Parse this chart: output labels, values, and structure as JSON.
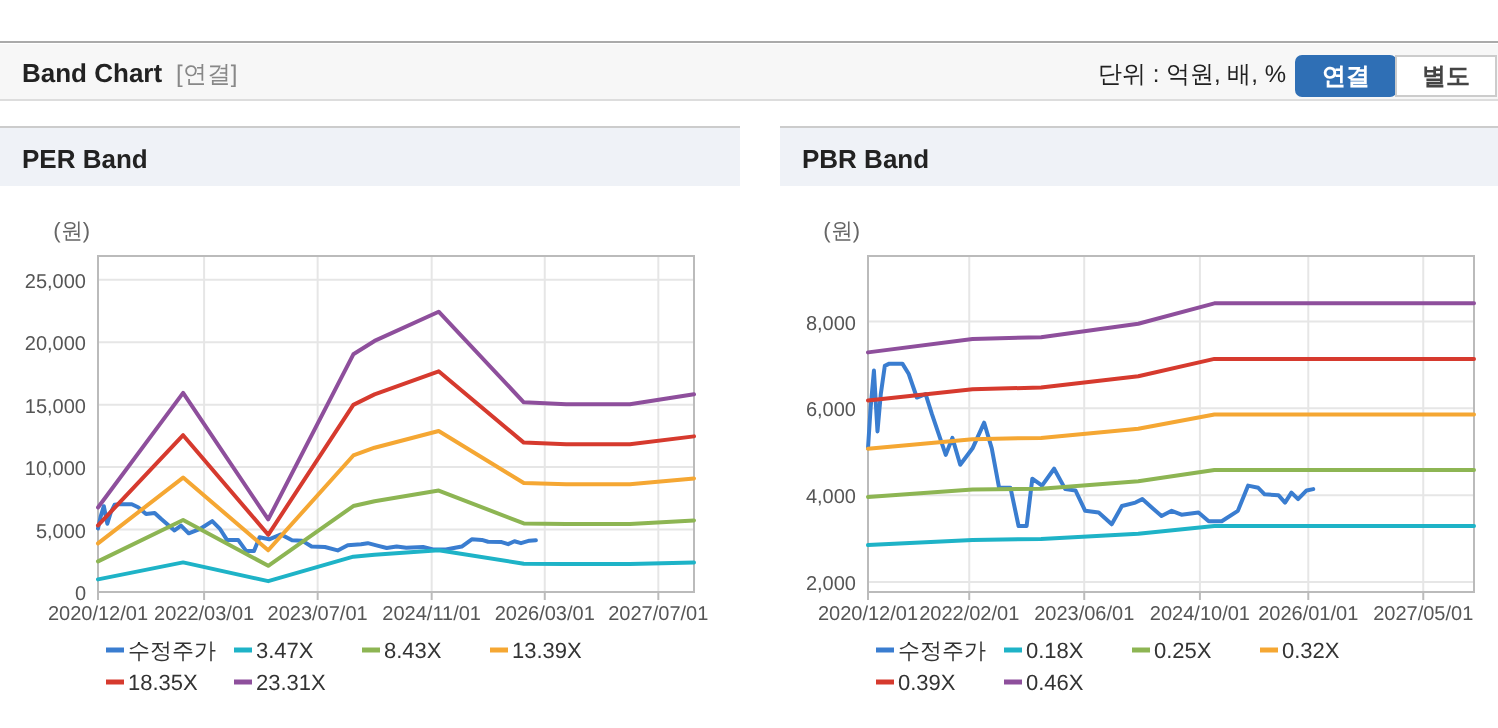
{
  "chart_data": [
    {
      "type": "other",
      "title": "Band Chart",
      "annotations": [
        "[연결]",
        "단위 : 억원, 배, %",
        "연결",
        "별도"
      ]
    },
    {
      "type": "line",
      "title": "PER Band",
      "ylabel": "(원)",
      "xlim": [
        "2020-12-01",
        "2027-12-01"
      ],
      "ylim": [
        0,
        26900
      ],
      "xticks": [
        {
          "value": "2020-12-01",
          "label": "2020/12/01"
        },
        {
          "value": "2022-03-01",
          "label": "2022/03/01"
        },
        {
          "value": "2023-07-01",
          "label": "2023/07/01"
        },
        {
          "value": "2024-11-01",
          "label": "2024/11/01"
        },
        {
          "value": "2026-03-01",
          "label": "2026/03/01"
        },
        {
          "value": "2027-07-01",
          "label": "2027/07/01"
        }
      ],
      "yticks": [
        0,
        {
          "value": 5000,
          "label": "5,000"
        },
        {
          "value": 10000,
          "label": "10,000"
        },
        {
          "value": 15000,
          "label": "15,000"
        },
        {
          "value": 20000,
          "label": "20,000"
        },
        {
          "value": 25000,
          "label": "25,000"
        }
      ],
      "grid": true,
      "legend": "bottom",
      "marker": "none",
      "line_style": "solid",
      "series": [
        {
          "name": "수정주가",
          "color": "#3a7dd0",
          "x": [
            "2020-12-01",
            "2020-12-12",
            "2020-12-26",
            "2021-01-10",
            "2021-01-24",
            "2021-02-10",
            "2021-03-01",
            "2021-04-25",
            "2021-05-22",
            "2021-06-25",
            "2021-08-01",
            "2021-08-28",
            "2021-10-25",
            "2021-11-22",
            "2021-12-25",
            "2022-02-15",
            "2022-04-05",
            "2022-05-07",
            "2022-06-07",
            "2022-07-25",
            "2022-08-28",
            "2022-10-01",
            "2022-10-25",
            "2022-12-05",
            "2023-01-25",
            "2023-03-13",
            "2023-04-25",
            "2023-06-05",
            "2023-08-01",
            "2023-09-25",
            "2023-11-07",
            "2024-01-03",
            "2024-02-01",
            "2024-03-13",
            "2024-04-22",
            "2024-06-04",
            "2024-07-15",
            "2024-09-25",
            "2024-11-07",
            "2025-01-01",
            "2025-03-10",
            "2025-04-22",
            "2025-06-04",
            "2025-07-01",
            "2025-08-28",
            "2025-09-25",
            "2025-10-22",
            "2025-11-19",
            "2025-12-25",
            "2026-01-22"
          ],
          "values": [
            5080,
            6010,
            6870,
            5470,
            6330,
            6980,
            7030,
            7030,
            6790,
            6250,
            6330,
            5860,
            4930,
            5320,
            4700,
            5080,
            5670,
            5080,
            4170,
            4170,
            3290,
            3290,
            4380,
            4220,
            4610,
            4140,
            4110,
            3640,
            3600,
            3330,
            3750,
            3830,
            3910,
            3710,
            3520,
            3640,
            3550,
            3600,
            3400,
            3400,
            3640,
            4220,
            4170,
            4020,
            4000,
            3830,
            4060,
            3910,
            4110,
            4140
          ]
        },
        {
          "name": "3.47X",
          "color": "#1eb3c7",
          "x": [
            "2020-12-01",
            "2021-12-01",
            "2022-12-01",
            "2023-12-01",
            "2024-03-01",
            "2024-12-01",
            "2025-12-01",
            "2026-06-01",
            "2027-03-01",
            "2027-12-01"
          ],
          "values": [
            1010,
            2370,
            870,
            2830,
            2990,
            3340,
            2260,
            2240,
            2240,
            2360
          ]
        },
        {
          "name": "8.43X",
          "color": "#8db553",
          "x": [
            "2020-12-01",
            "2021-12-01",
            "2022-12-01",
            "2023-12-01",
            "2024-03-01",
            "2024-12-01",
            "2025-12-01",
            "2026-06-01",
            "2027-03-01",
            "2027-12-01"
          ],
          "values": [
            2450,
            5760,
            2100,
            6880,
            7270,
            8120,
            5490,
            5440,
            5440,
            5730
          ]
        },
        {
          "name": "13.39X",
          "color": "#f5a733",
          "x": [
            "2020-12-01",
            "2021-12-01",
            "2022-12-01",
            "2023-12-01",
            "2024-03-01",
            "2024-12-01",
            "2025-12-01",
            "2026-06-01",
            "2027-03-01",
            "2027-12-01"
          ],
          "values": [
            3890,
            9160,
            3340,
            10930,
            11550,
            12890,
            8730,
            8630,
            8630,
            9090
          ]
        },
        {
          "name": "18.35X",
          "color": "#d63a2e",
          "x": [
            "2020-12-01",
            "2021-12-01",
            "2022-12-01",
            "2023-12-01",
            "2024-03-01",
            "2024-12-01",
            "2025-12-01",
            "2026-06-01",
            "2027-03-01",
            "2027-12-01"
          ],
          "values": [
            5330,
            12550,
            4580,
            14980,
            15820,
            17670,
            11960,
            11830,
            11830,
            12460
          ]
        },
        {
          "name": "23.31X",
          "color": "#8e4f9c",
          "x": [
            "2020-12-01",
            "2021-12-01",
            "2022-12-01",
            "2023-12-01",
            "2024-03-01",
            "2024-12-01",
            "2025-12-01",
            "2026-06-01",
            "2027-03-01",
            "2027-12-01"
          ],
          "values": [
            6770,
            15940,
            5810,
            19030,
            20100,
            22440,
            15190,
            15030,
            15030,
            15830
          ]
        }
      ]
    },
    {
      "type": "line",
      "title": "PBR Band",
      "ylabel": "(원)",
      "xlim": [
        "2020-12-01",
        "2027-12-01"
      ],
      "ylim": [
        1770,
        9510
      ],
      "xticks": [
        {
          "value": "2020-12-01",
          "label": "2020/12/01"
        },
        {
          "value": "2022-02-01",
          "label": "2022/02/01"
        },
        {
          "value": "2023-06-01",
          "label": "2023/06/01"
        },
        {
          "value": "2024-10-01",
          "label": "2024/10/01"
        },
        {
          "value": "2026-01-01",
          "label": "2026/01/01"
        },
        {
          "value": "2027-05-01",
          "label": "2027/05/01"
        }
      ],
      "yticks": [
        {
          "value": 2000,
          "label": "2,000"
        },
        {
          "value": 4000,
          "label": "4,000"
        },
        {
          "value": 6000,
          "label": "6,000"
        },
        {
          "value": 8000,
          "label": "8,000"
        }
      ],
      "grid": true,
      "legend": "bottom",
      "marker": "none",
      "line_style": "solid",
      "series": [
        {
          "name": "수정주가",
          "color": "#3a7dd0",
          "x": [
            "2020-12-01",
            "2020-12-12",
            "2020-12-26",
            "2021-01-10",
            "2021-01-24",
            "2021-02-10",
            "2021-03-01",
            "2021-04-25",
            "2021-05-22",
            "2021-06-25",
            "2021-08-01",
            "2021-08-28",
            "2021-10-25",
            "2021-11-22",
            "2021-12-25",
            "2022-02-15",
            "2022-04-05",
            "2022-05-07",
            "2022-06-07",
            "2022-07-25",
            "2022-08-28",
            "2022-10-01",
            "2022-10-25",
            "2022-12-05",
            "2023-01-25",
            "2023-03-13",
            "2023-04-25",
            "2023-06-05",
            "2023-08-01",
            "2023-09-25",
            "2023-11-07",
            "2024-01-03",
            "2024-02-01",
            "2024-03-13",
            "2024-04-22",
            "2024-06-04",
            "2024-07-15",
            "2024-09-25",
            "2024-11-07",
            "2025-01-01",
            "2025-03-10",
            "2025-04-22",
            "2025-06-04",
            "2025-07-01",
            "2025-08-28",
            "2025-09-25",
            "2025-10-22",
            "2025-11-19",
            "2025-12-25",
            "2026-01-22"
          ],
          "values": [
            5080,
            6010,
            6870,
            5470,
            6330,
            6980,
            7030,
            7030,
            6790,
            6250,
            6330,
            5860,
            4930,
            5320,
            4700,
            5080,
            5670,
            5080,
            4170,
            4170,
            3290,
            3290,
            4380,
            4220,
            4610,
            4140,
            4110,
            3640,
            3600,
            3330,
            3750,
            3830,
            3910,
            3710,
            3520,
            3640,
            3550,
            3600,
            3400,
            3400,
            3640,
            4220,
            4170,
            4020,
            4000,
            3830,
            4060,
            3910,
            4110,
            4140
          ]
        },
        {
          "name": "0.18X",
          "color": "#1eb3c7",
          "x": [
            "2020-12-01",
            "2022-02-15",
            "2022-12-01",
            "2024-01-15",
            "2024-12-01",
            "2027-12-01"
          ],
          "values": [
            2850,
            2970,
            2990,
            3110,
            3290,
            3290
          ]
        },
        {
          "name": "0.25X",
          "color": "#8db553",
          "x": [
            "2020-12-01",
            "2022-02-15",
            "2022-12-01",
            "2024-01-15",
            "2024-12-01",
            "2027-12-01"
          ],
          "values": [
            3960,
            4130,
            4150,
            4320,
            4580,
            4580
          ]
        },
        {
          "name": "0.32X",
          "color": "#f5a733",
          "x": [
            "2020-12-01",
            "2022-02-15",
            "2022-12-01",
            "2024-01-15",
            "2024-12-01",
            "2027-12-01"
          ],
          "values": [
            5070,
            5290,
            5320,
            5530,
            5860,
            5860
          ]
        },
        {
          "name": "0.39X",
          "color": "#d63a2e",
          "x": [
            "2020-12-01",
            "2022-02-15",
            "2022-12-01",
            "2024-01-15",
            "2024-12-01",
            "2027-12-01"
          ],
          "values": [
            6180,
            6440,
            6480,
            6740,
            7140,
            7140
          ]
        },
        {
          "name": "0.46X",
          "color": "#8e4f9c",
          "x": [
            "2020-12-01",
            "2022-02-15",
            "2022-12-01",
            "2024-01-15",
            "2024-12-01",
            "2027-12-01"
          ],
          "values": [
            7290,
            7600,
            7640,
            7950,
            8420,
            8420
          ]
        }
      ]
    }
  ]
}
